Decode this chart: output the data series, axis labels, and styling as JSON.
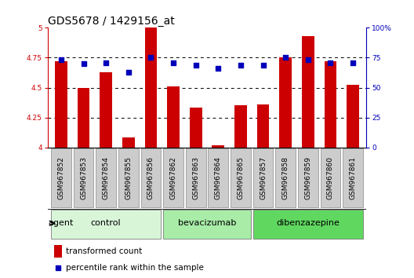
{
  "title": "GDS5678 / 1429156_at",
  "samples": [
    "GSM967852",
    "GSM967853",
    "GSM967854",
    "GSM967855",
    "GSM967856",
    "GSM967862",
    "GSM967863",
    "GSM967864",
    "GSM967865",
    "GSM967857",
    "GSM967858",
    "GSM967859",
    "GSM967860",
    "GSM967861"
  ],
  "bar_values": [
    4.72,
    4.5,
    4.63,
    4.08,
    5.0,
    4.51,
    4.33,
    4.02,
    4.35,
    4.36,
    4.75,
    4.93,
    4.72,
    4.52
  ],
  "dot_values": [
    73,
    70,
    71,
    63,
    75,
    71,
    69,
    66,
    69,
    69,
    75,
    73,
    71,
    71
  ],
  "groups": [
    {
      "label": "control",
      "start": 0,
      "end": 5,
      "color": "#d8f5d8"
    },
    {
      "label": "bevacizumab",
      "start": 5,
      "end": 9,
      "color": "#a8eca8"
    },
    {
      "label": "dibenzazepine",
      "start": 9,
      "end": 14,
      "color": "#60d860"
    }
  ],
  "ylim_left": [
    4.0,
    5.0
  ],
  "ylim_right": [
    0,
    100
  ],
  "yticks_left": [
    4.0,
    4.25,
    4.5,
    4.75,
    5.0
  ],
  "yticks_right": [
    0,
    25,
    50,
    75,
    100
  ],
  "ytick_labels_left": [
    "4",
    "4.25",
    "4.5",
    "4.75",
    "5"
  ],
  "ytick_labels_right": [
    "0",
    "25",
    "50",
    "75",
    "100%"
  ],
  "bar_color": "#cc0000",
  "dot_color": "#0000bb",
  "grid_color": "#000000",
  "bg_color": "#ffffff",
  "xlabel_bg": "#cccccc",
  "xlabel_border": "#888888",
  "agent_label": "agent",
  "legend_bar_label": "transformed count",
  "legend_dot_label": "percentile rank within the sample",
  "title_fontsize": 10,
  "tick_fontsize": 6.5,
  "xlabel_fontsize": 6.5,
  "group_fontsize": 8,
  "legend_fontsize": 7.5
}
